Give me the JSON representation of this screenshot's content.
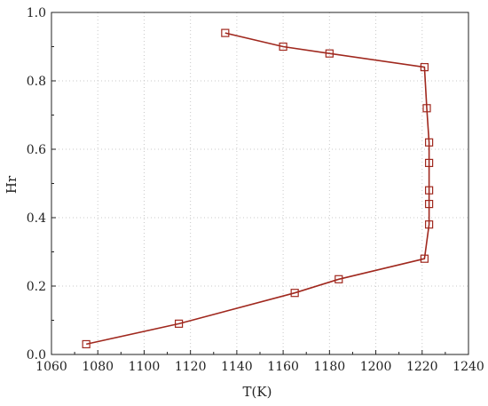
{
  "chart_data": {
    "type": "line",
    "title": "",
    "xlabel": "T(K)",
    "ylabel": "Hr",
    "xlim": [
      1060,
      1240
    ],
    "ylim": [
      0.0,
      1.0
    ],
    "xticks": [
      "1060",
      "1080",
      "1100",
      "1120",
      "1140",
      "1160",
      "1180",
      "1200",
      "1220",
      "1240"
    ],
    "yticks": [
      "0.0",
      "0.2",
      "0.4",
      "0.6",
      "0.8",
      "1.0"
    ],
    "grid": true,
    "legend": "none",
    "series": [
      {
        "marker": "open-square",
        "color": "#a0281e",
        "points": [
          {
            "x": 1075,
            "y": 0.03
          },
          {
            "x": 1115,
            "y": 0.09
          },
          {
            "x": 1165,
            "y": 0.18
          },
          {
            "x": 1184,
            "y": 0.22
          },
          {
            "x": 1221,
            "y": 0.28
          },
          {
            "x": 1223,
            "y": 0.38
          },
          {
            "x": 1223,
            "y": 0.44
          },
          {
            "x": 1223,
            "y": 0.48
          },
          {
            "x": 1223,
            "y": 0.56
          },
          {
            "x": 1223,
            "y": 0.62
          },
          {
            "x": 1222,
            "y": 0.72
          },
          {
            "x": 1221,
            "y": 0.84
          },
          {
            "x": 1180,
            "y": 0.88
          },
          {
            "x": 1160,
            "y": 0.9
          },
          {
            "x": 1135,
            "y": 0.94
          }
        ]
      }
    ]
  }
}
